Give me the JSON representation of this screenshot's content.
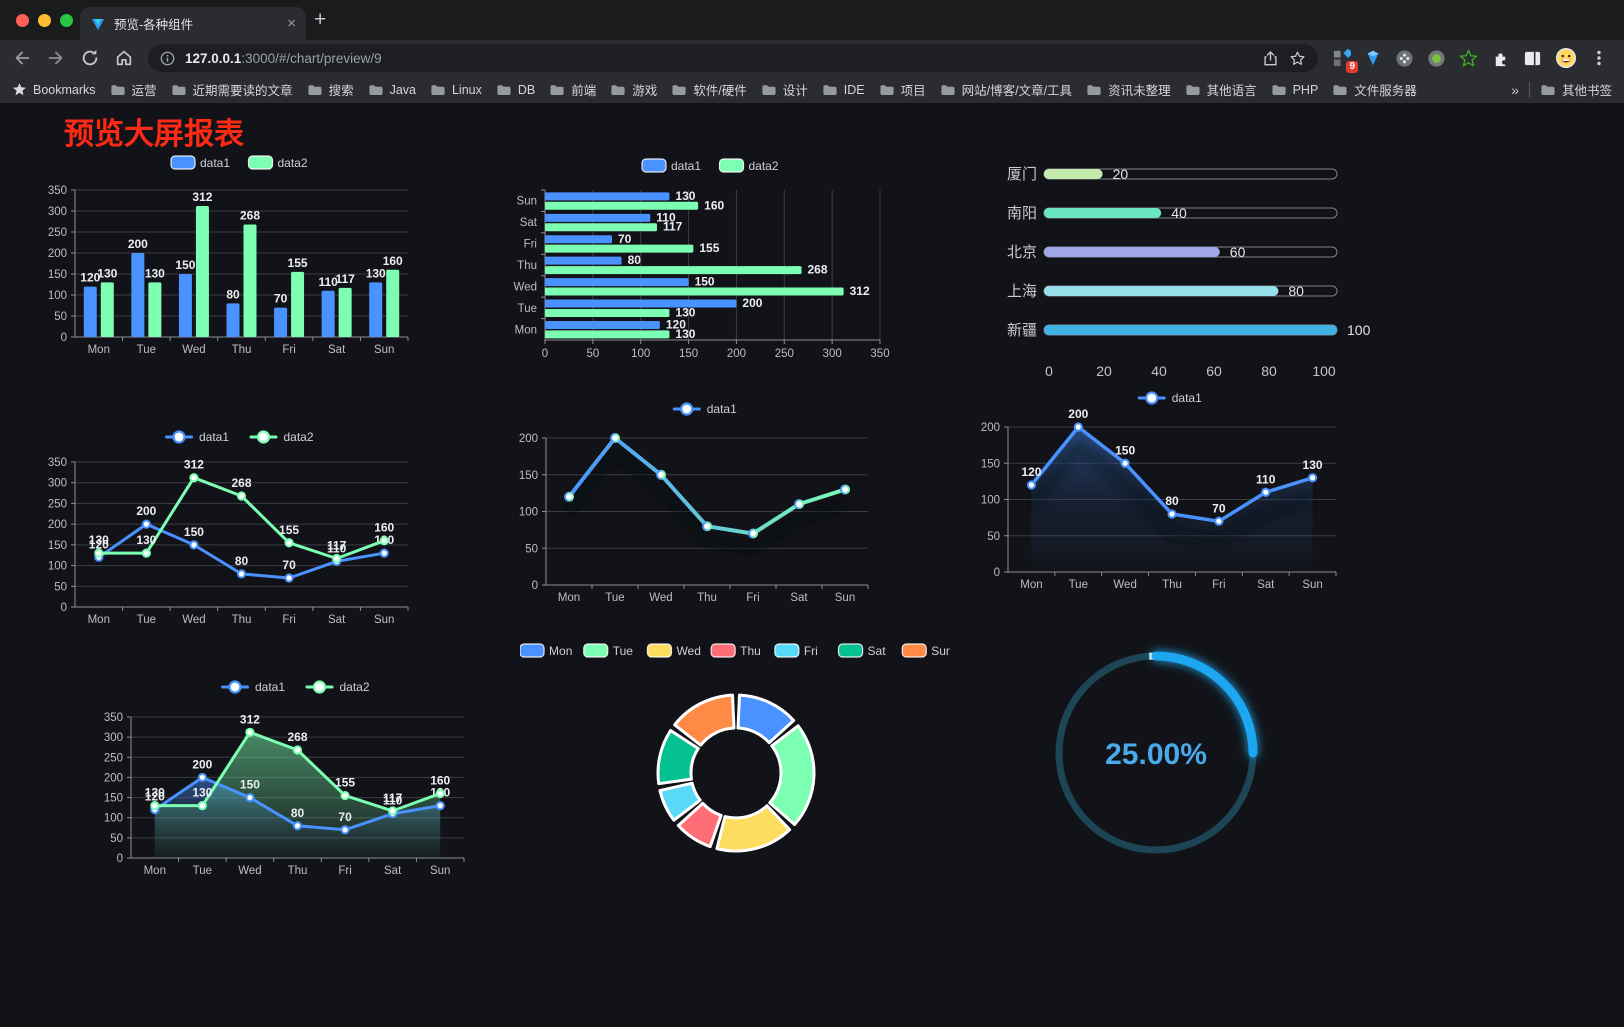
{
  "browser": {
    "tab_title": "预览-各种组件",
    "url_host": "127.0.0.1",
    "url_rest": ":3000/#/chart/preview/9",
    "new_tab_label": "+",
    "tab_close_label": "×",
    "bookmarks_label": "Bookmarks",
    "bookmark_folders": [
      "运营",
      "近期需要读的文章",
      "搜索",
      "Java",
      "Linux",
      "DB",
      "前端",
      "游戏",
      "软件/硬件",
      "设计",
      "IDE",
      "项目",
      "网站/博客/文章/工具",
      "资讯未整理",
      "其他语言",
      "PHP",
      "文件服务器"
    ],
    "bookmarks_overflow": "»",
    "other_bookmarks": "其他书签",
    "extension_badge": "9"
  },
  "page": {
    "title": "预览大屏报表",
    "title_color": "#ff2a16",
    "background": "#121318"
  },
  "colors": {
    "series_blue": "#4992ff",
    "series_green": "#7cffb2",
    "axis_text": "#bcbdc8",
    "axis_line": "#8d8f99",
    "grid_line": "#3b3d45",
    "value_label": "#eceef2"
  },
  "chart_data": [
    {
      "id": "bar-vertical",
      "type": "bar",
      "categories": [
        "Mon",
        "Tue",
        "Wed",
        "Thu",
        "Fri",
        "Sat",
        "Sun"
      ],
      "series": [
        {
          "name": "data1",
          "color": "#4992ff",
          "values": [
            120,
            200,
            150,
            80,
            70,
            110,
            130
          ]
        },
        {
          "name": "data2",
          "color": "#7cffb2",
          "values": [
            130,
            130,
            312,
            268,
            155,
            117,
            160
          ]
        }
      ],
      "ylim": [
        0,
        350
      ],
      "ystep": 50,
      "legend_position": "top",
      "grid": true
    },
    {
      "id": "bar-horizontal",
      "type": "bar",
      "orientation": "horizontal",
      "categories_top_to_bottom": [
        "Sun",
        "Sat",
        "Fri",
        "Thu",
        "Wed",
        "Tue",
        "Mon"
      ],
      "series": [
        {
          "name": "data1",
          "color": "#4992ff",
          "values_top_to_bottom": [
            130,
            110,
            70,
            80,
            150,
            200,
            120
          ]
        },
        {
          "name": "data2",
          "color": "#7cffb2",
          "values_top_to_bottom": [
            160,
            117,
            155,
            268,
            312,
            130,
            130
          ]
        }
      ],
      "xlim": [
        0,
        350
      ],
      "xstep": 50,
      "legend_position": "top",
      "grid": true
    },
    {
      "id": "progress-bars",
      "type": "bar",
      "subtype": "progress-list",
      "items": [
        {
          "label": "厦门",
          "value": 20,
          "color": "#c4ebad"
        },
        {
          "label": "南阳",
          "value": 40,
          "color": "#6be6c1"
        },
        {
          "label": "北京",
          "value": 60,
          "color": "#a0a7e6"
        },
        {
          "label": "上海",
          "value": 80,
          "color": "#96dee8"
        },
        {
          "label": "新疆",
          "value": 100,
          "color": "#3fb1e3"
        }
      ],
      "xticks": [
        0,
        20,
        40,
        60,
        80,
        100
      ],
      "xlim": [
        0,
        100
      ]
    },
    {
      "id": "line-two-series",
      "type": "line",
      "categories": [
        "Mon",
        "Tue",
        "Wed",
        "Thu",
        "Fri",
        "Sat",
        "Sun"
      ],
      "series": [
        {
          "name": "data1",
          "color": "#4992ff",
          "values": [
            120,
            200,
            150,
            80,
            70,
            110,
            130
          ]
        },
        {
          "name": "data2",
          "color": "#7cffb2",
          "values": [
            130,
            130,
            312,
            268,
            155,
            117,
            160
          ]
        }
      ],
      "ylim": [
        0,
        350
      ],
      "ystep": 50,
      "point_labels": true,
      "legend_position": "top"
    },
    {
      "id": "line-gradient",
      "type": "line",
      "categories": [
        "Mon",
        "Tue",
        "Wed",
        "Thu",
        "Fri",
        "Sat",
        "Sun"
      ],
      "series": [
        {
          "name": "data1",
          "gradient": [
            "#4992ff",
            "#7cffb2"
          ],
          "values": [
            120,
            200,
            150,
            80,
            70,
            110,
            130
          ]
        }
      ],
      "ylim": [
        0,
        200
      ],
      "ystep": 50,
      "point_labels": false,
      "legend_position": "top"
    },
    {
      "id": "area-single",
      "type": "area",
      "categories": [
        "Mon",
        "Tue",
        "Wed",
        "Thu",
        "Fri",
        "Sat",
        "Sun"
      ],
      "series": [
        {
          "name": "data1",
          "color": "#4992ff",
          "values": [
            120,
            200,
            150,
            80,
            70,
            110,
            130
          ]
        }
      ],
      "ylim": [
        0,
        200
      ],
      "ystep": 50,
      "point_labels": true,
      "legend_position": "top"
    },
    {
      "id": "area-two-series",
      "type": "area",
      "categories": [
        "Mon",
        "Tue",
        "Wed",
        "Thu",
        "Fri",
        "Sat",
        "Sun"
      ],
      "series": [
        {
          "name": "data1",
          "color": "#4992ff",
          "values": [
            120,
            200,
            150,
            80,
            70,
            110,
            130
          ]
        },
        {
          "name": "data2",
          "color": "#7cffb2",
          "values": [
            130,
            130,
            312,
            268,
            155,
            117,
            160
          ]
        }
      ],
      "ylim": [
        0,
        350
      ],
      "ystep": 50,
      "point_labels": true,
      "legend_position": "top"
    },
    {
      "id": "donut",
      "type": "pie",
      "inner_radius_ratio": 0.58,
      "items": [
        {
          "label": "Mon",
          "value": 120,
          "color": "#4992ff"
        },
        {
          "label": "Tue",
          "value": 200,
          "color": "#7cffb2"
        },
        {
          "label": "Wed",
          "value": 150,
          "color": "#fddd60"
        },
        {
          "label": "Thu",
          "value": 80,
          "color": "#ff6e76"
        },
        {
          "label": "Fri",
          "value": 70,
          "color": "#58d9f9"
        },
        {
          "label": "Sat",
          "value": 110,
          "color": "#05c091"
        },
        {
          "label": "Sun",
          "value": 130,
          "color": "#ff8a45"
        }
      ],
      "legend_position": "top"
    },
    {
      "id": "gauge",
      "type": "gauge",
      "value": 25,
      "label": "25.00%",
      "progress_color": "#1ea7f0",
      "track_color": "#1d4555",
      "text_color": "#49a9e9"
    }
  ]
}
